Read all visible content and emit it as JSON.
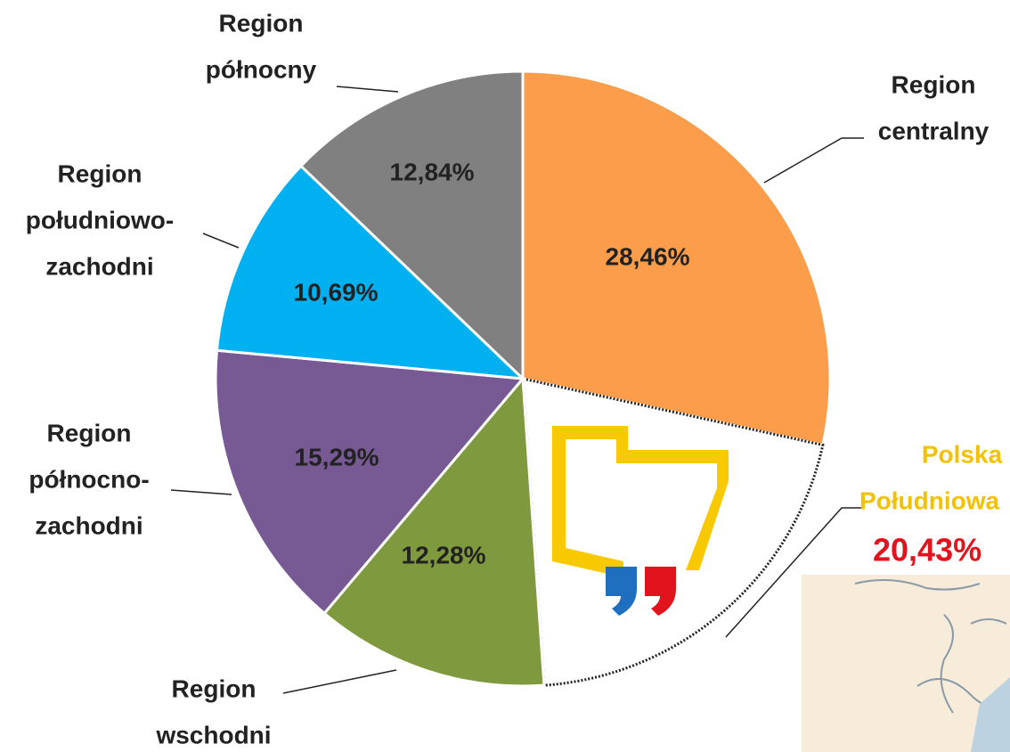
{
  "chart_data": {
    "type": "pie",
    "categories": [
      [
        "Region",
        "centralny"
      ],
      [
        "Polska",
        "Południowa"
      ],
      [
        "Region",
        "wschodni"
      ],
      [
        "Region",
        "północno-",
        "zachodni"
      ],
      [
        "Region",
        "południowo-",
        "zachodni"
      ],
      [
        "Region",
        "północny"
      ]
    ],
    "values": [
      28.46,
      20.43,
      12.28,
      15.29,
      10.69,
      12.84
    ],
    "value_labels": [
      "28,46%",
      "20,43%",
      "12,28%",
      "15,29%",
      "10,69%",
      "12,84%"
    ],
    "colors": [
      "#fb9d4b",
      "#ffffff",
      "#7f9a3e",
      "#775a94",
      "#00b0f0",
      "#808080"
    ],
    "label_colors": [
      "#222222",
      "#f2c100",
      "#222222",
      "#222222",
      "#222222",
      "#222222"
    ]
  }
}
